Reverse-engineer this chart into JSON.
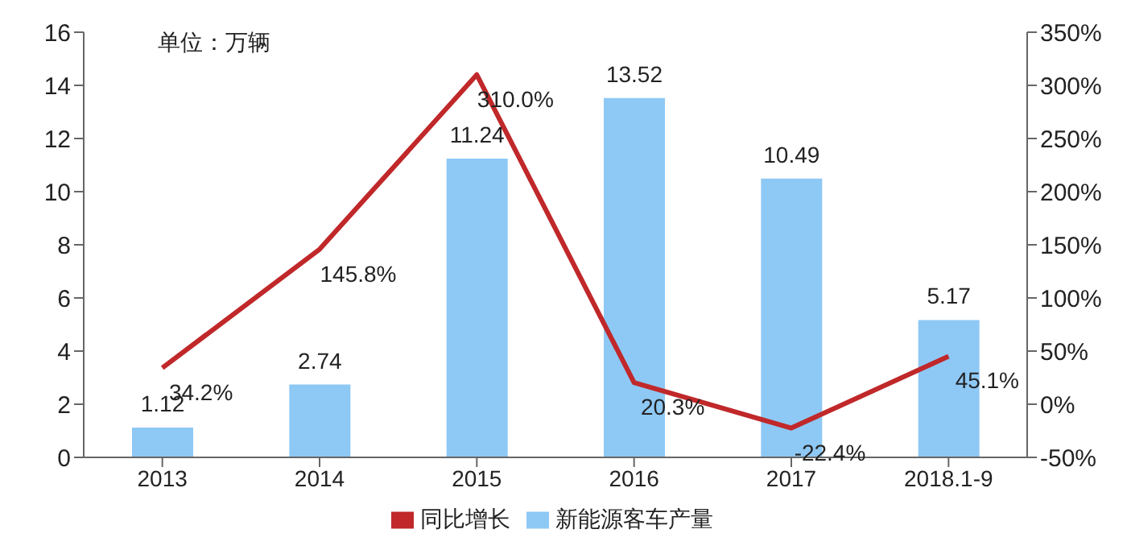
{
  "chart_data": {
    "type": "bar",
    "annotations": [
      "单位：万辆"
    ],
    "categories": [
      "2013",
      "2014",
      "2015",
      "2016",
      "2017",
      "2018.1-9"
    ],
    "series": [
      {
        "name": "新能源客车产量",
        "color": "#8ec8f5",
        "values": [
          1.12,
          2.74,
          11.24,
          13.52,
          10.49,
          5.17
        ],
        "value_labels": [
          "1.12",
          "2.74",
          "11.24",
          "13.52",
          "10.49",
          "5.17"
        ]
      },
      {
        "name": "同比增长",
        "type": "line",
        "axis": "y2",
        "color": "#c0282a",
        "values": [
          34.2,
          145.8,
          310.0,
          20.3,
          -22.4,
          45.1
        ],
        "value_labels": [
          "34.2%",
          "145.8%",
          "310.0%",
          "20.3%",
          "-22.4%",
          "45.1%"
        ]
      }
    ],
    "ylim": [
      0,
      16
    ],
    "yticks": [
      0,
      2,
      4,
      6,
      8,
      10,
      12,
      14,
      16
    ],
    "y2lim": [
      -50,
      350
    ],
    "y2ticks": [
      {
        "value": -50,
        "label": "-50%"
      },
      {
        "value": 0,
        "label": "0%"
      },
      {
        "value": 50,
        "label": "50%"
      },
      {
        "value": 100,
        "label": "100%"
      },
      {
        "value": 150,
        "label": "150%"
      },
      {
        "value": 200,
        "label": "200%"
      },
      {
        "value": 250,
        "label": "250%"
      },
      {
        "value": 300,
        "label": "300%"
      },
      {
        "value": 350,
        "label": "350%"
      }
    ],
    "grid": false,
    "legend": "bottom",
    "marker": "none",
    "line_style": "solid"
  }
}
